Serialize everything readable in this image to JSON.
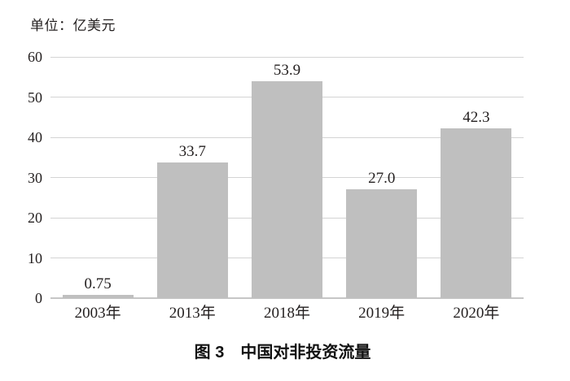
{
  "unit_label": "单位：亿美元",
  "caption": "图 3　中国对非投资流量",
  "colors": {
    "bar": "#bfbfbf",
    "gridline": "#d4d4d4",
    "axis_line": "#c6c6c6",
    "text": "#231f1f"
  },
  "chart_data": {
    "type": "bar",
    "title": "图 3　中国对非投资流量",
    "unit": "单位：亿美元",
    "categories": [
      "2003年",
      "2013年",
      "2018年",
      "2019年",
      "2020年"
    ],
    "values": [
      0.75,
      33.7,
      53.9,
      27.0,
      42.3
    ],
    "value_labels": [
      "0.75",
      "33.7",
      "53.9",
      "27.0",
      "42.3"
    ],
    "xlabel": "",
    "ylabel": "",
    "ylim": [
      0,
      60
    ],
    "yticks": [
      0,
      10,
      20,
      30,
      40,
      50,
      60
    ],
    "grid": true,
    "legend": "none",
    "bar_color": "#bfbfbf"
  }
}
